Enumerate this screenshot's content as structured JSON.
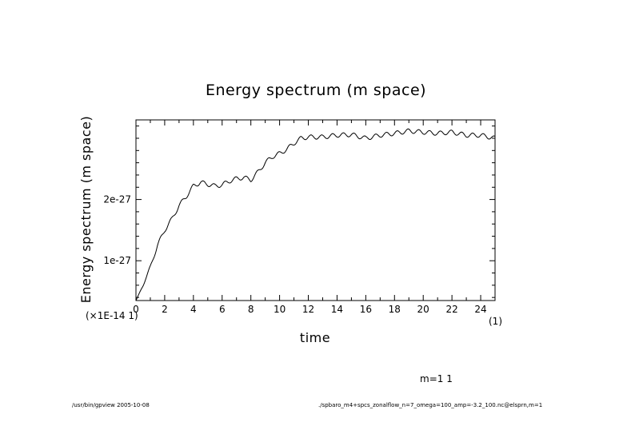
{
  "chart_data": {
    "type": "line",
    "title": "Energy spectrum (m space)",
    "xlabel": "time",
    "ylabel": "Energy spectrum (m space)",
    "x_scale_note": "(1)",
    "y_scale_note": "(×1E-14 1)",
    "xlim": [
      0,
      25
    ],
    "ylim": [
      3.5e-28,
      3.3e-27
    ],
    "x_ticks": [
      0,
      2,
      4,
      6,
      8,
      10,
      12,
      14,
      16,
      18,
      20,
      22,
      24
    ],
    "x_tick_labels": [
      "0",
      "2",
      "4",
      "6",
      "8",
      "10",
      "12",
      "14",
      "16",
      "18",
      "20",
      "22",
      "24"
    ],
    "y_ticks": [
      1e-27,
      2e-27
    ],
    "y_tick_labels": [
      "1e-27",
      "2e-27"
    ],
    "grid": false,
    "series": [
      {
        "name": "m=1 1",
        "x": [
          0,
          0.5,
          1,
          1.5,
          2,
          2.5,
          3,
          3.5,
          4,
          4.5,
          5,
          5.5,
          6,
          6.5,
          7,
          7.5,
          8,
          8.5,
          9,
          9.5,
          10,
          10.5,
          11,
          11.5,
          12,
          13,
          14,
          15,
          16,
          17,
          18,
          19,
          20,
          21,
          22,
          23,
          24,
          25
        ],
        "values": [
          3.5e-28,
          6e-28,
          9e-28,
          1.25e-27,
          1.5e-27,
          1.68e-27,
          1.9e-27,
          2.05e-27,
          2.22e-27,
          2.28e-27,
          2.25e-27,
          2.22e-27,
          2.24e-27,
          2.3e-27,
          2.34e-27,
          2.36e-27,
          2.32e-27,
          2.45e-27,
          2.6e-27,
          2.7e-27,
          2.75e-27,
          2.82e-27,
          2.92e-27,
          3e-27,
          3.02e-27,
          3.02e-27,
          3.05e-27,
          3.06e-27,
          3e-27,
          3.05e-27,
          3.08e-27,
          3.12e-27,
          3.1e-27,
          3.08e-27,
          3.1e-27,
          3.05e-27,
          3.05e-27,
          3e-27
        ]
      }
    ],
    "legend_entry": "m=1 1"
  },
  "footer": {
    "left": "/usr/bin/gpview  2005-10-08",
    "right": "./spbaro_m4+spcs_zonalflow_n=7_omega=100_amp=-3.2_100.nc@elsprn,m=1"
  }
}
